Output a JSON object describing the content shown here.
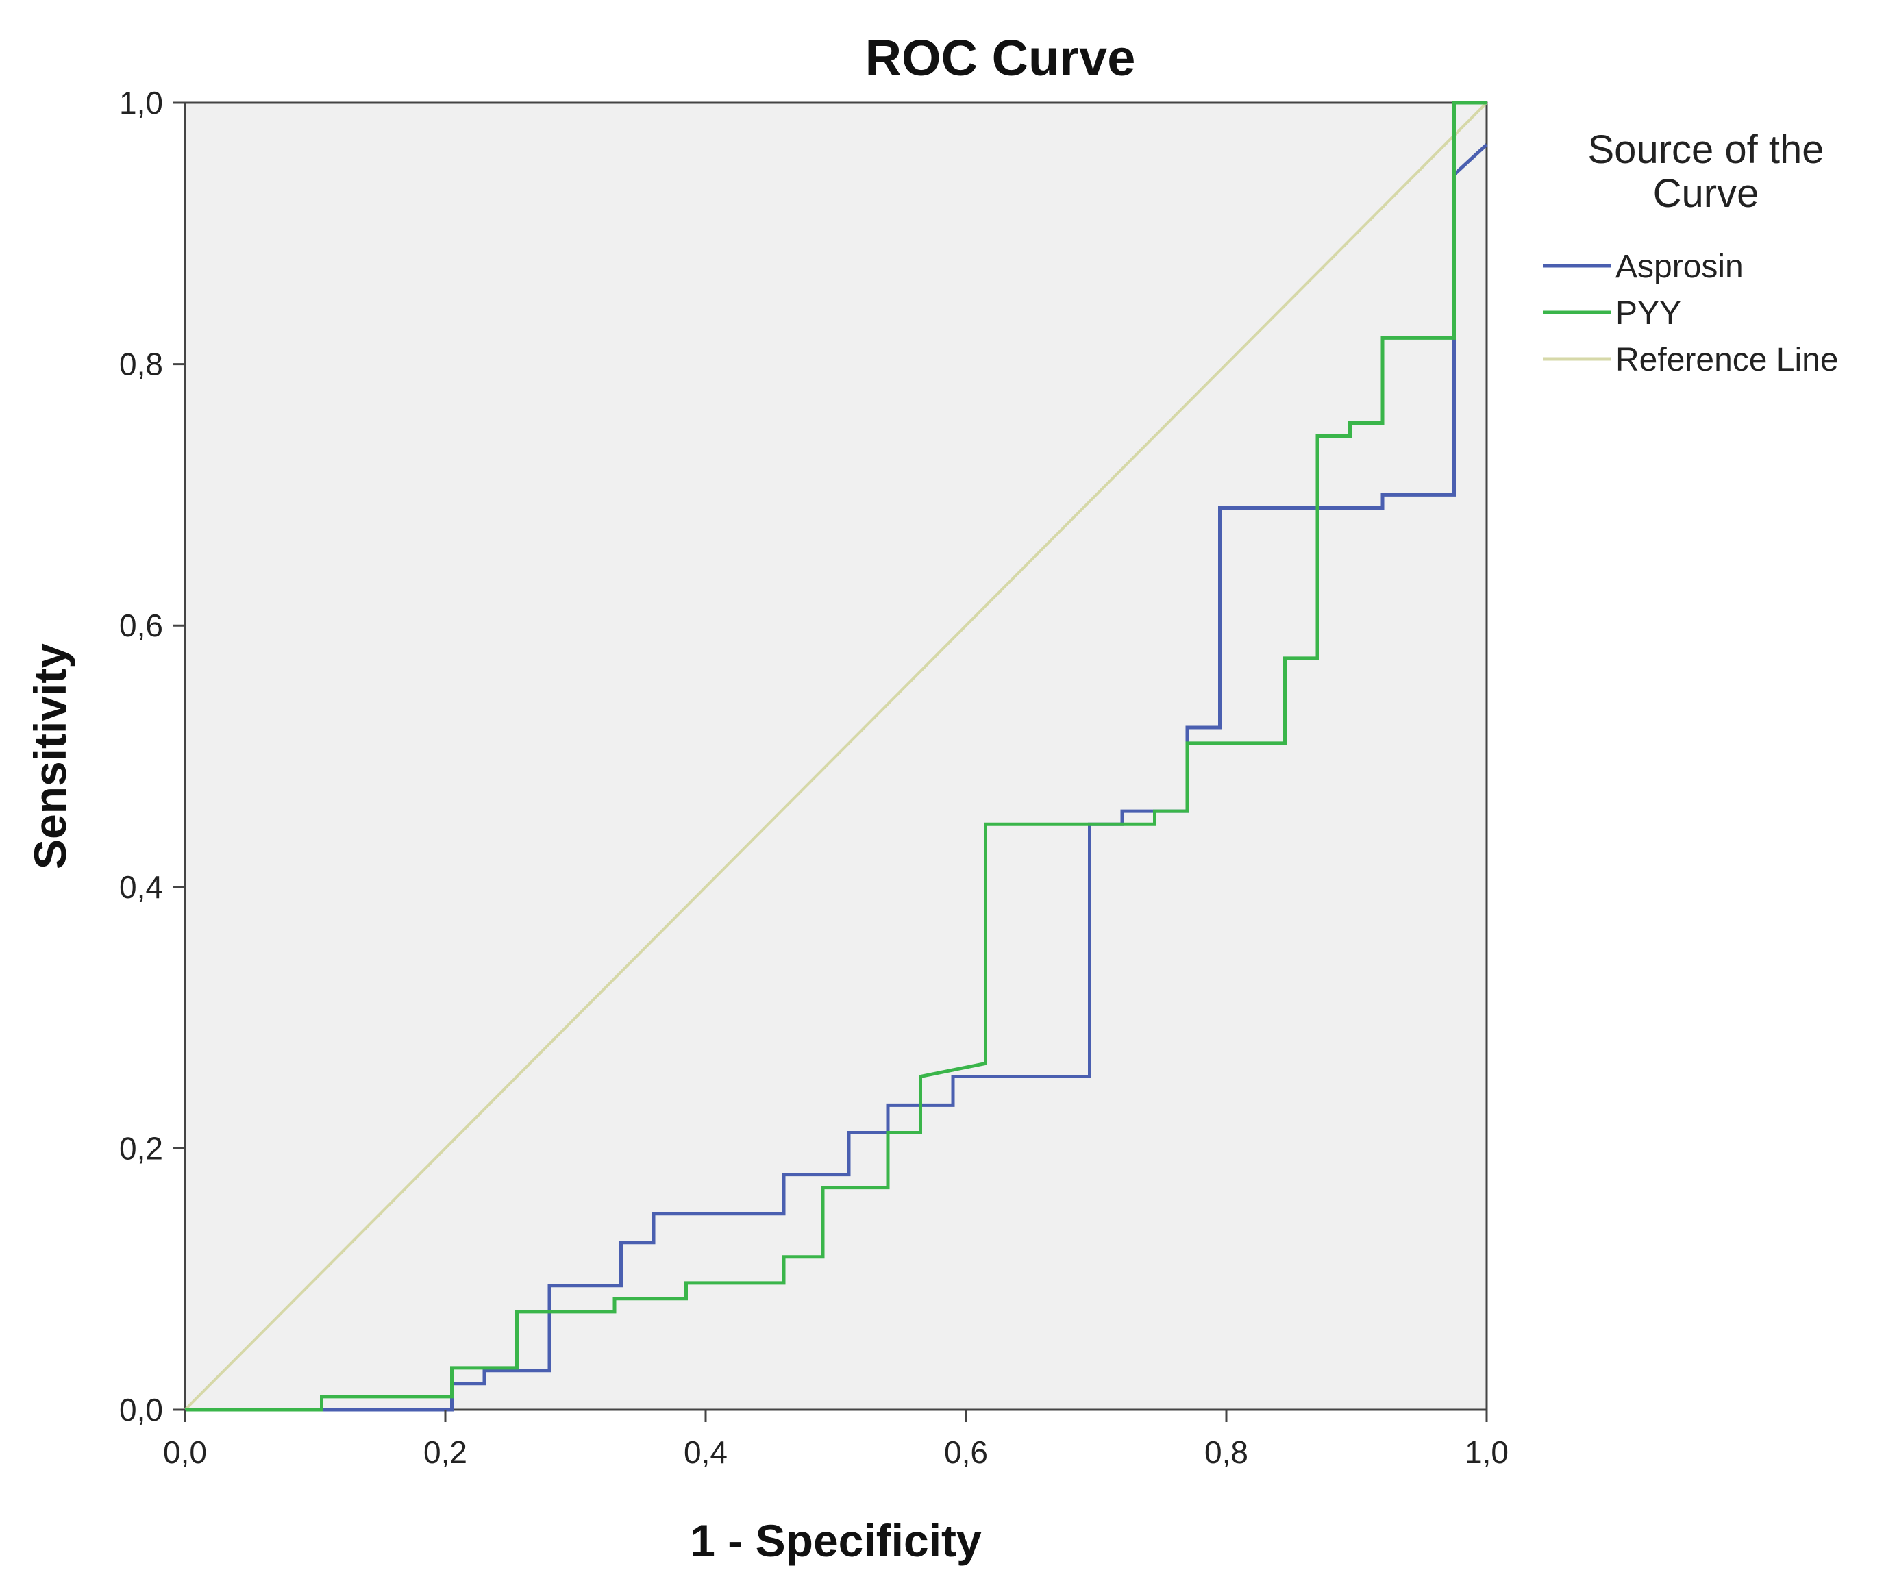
{
  "chart_data": {
    "type": "line",
    "title": "ROC Curve",
    "xlabel": "1 - Specificity",
    "ylabel": "Sensitivity",
    "xlim": [
      0,
      1
    ],
    "ylim": [
      0,
      1
    ],
    "x_ticks": [
      0,
      0.2,
      0.4,
      0.6,
      0.8,
      1
    ],
    "x_tick_labels": [
      "0,0",
      "0,2",
      "0,4",
      "0,6",
      "0,8",
      "1,0"
    ],
    "y_ticks": [
      0,
      0.2,
      0.4,
      0.6,
      0.8,
      1
    ],
    "y_tick_labels": [
      "0,0",
      "0,2",
      "0,4",
      "0,6",
      "0,8",
      "1,0"
    ],
    "grid": false,
    "plot_background": "#f0f0f0",
    "legend": {
      "title": "Source of the Curve",
      "placement": "right-top"
    },
    "series": [
      {
        "name": "Asprosin",
        "color": "#4a5fb0",
        "x": [
          0,
          0.205,
          0.205,
          0.23,
          0.23,
          0.28,
          0.28,
          0.335,
          0.335,
          0.36,
          0.36,
          0.46,
          0.46,
          0.51,
          0.51,
          0.54,
          0.54,
          0.59,
          0.59,
          0.695,
          0.695,
          0.72,
          0.72,
          0.77,
          0.77,
          0.795,
          0.795,
          0.92,
          0.92,
          0.975,
          0.975,
          1.0
        ],
        "y": [
          0,
          0,
          0.02,
          0.02,
          0.03,
          0.03,
          0.095,
          0.095,
          0.128,
          0.128,
          0.15,
          0.15,
          0.18,
          0.18,
          0.212,
          0.212,
          0.233,
          0.233,
          0.255,
          0.255,
          0.448,
          0.448,
          0.458,
          0.458,
          0.522,
          0.522,
          0.69,
          0.69,
          0.7,
          0.7,
          0.945,
          0.968
        ]
      },
      {
        "name": "PYY",
        "color": "#3ab54a",
        "x": [
          0,
          0.105,
          0.105,
          0.205,
          0.205,
          0.255,
          0.255,
          0.33,
          0.33,
          0.385,
          0.385,
          0.46,
          0.46,
          0.49,
          0.49,
          0.54,
          0.54,
          0.565,
          0.565,
          0.615,
          0.615,
          0.745,
          0.745,
          0.77,
          0.77,
          0.845,
          0.845,
          0.87,
          0.87,
          0.895,
          0.895,
          0.92,
          0.92,
          0.975,
          0.975,
          1.0
        ],
        "y": [
          0,
          0,
          0.01,
          0.01,
          0.032,
          0.032,
          0.075,
          0.075,
          0.085,
          0.085,
          0.097,
          0.097,
          0.117,
          0.117,
          0.17,
          0.17,
          0.212,
          0.212,
          0.255,
          0.265,
          0.448,
          0.448,
          0.458,
          0.458,
          0.51,
          0.51,
          0.575,
          0.575,
          0.745,
          0.745,
          0.755,
          0.755,
          0.82,
          0.82,
          1.0,
          1.0
        ]
      },
      {
        "name": "Reference Line",
        "color": "#d6d8a8",
        "x": [
          0,
          1
        ],
        "y": [
          0,
          1
        ]
      }
    ]
  }
}
